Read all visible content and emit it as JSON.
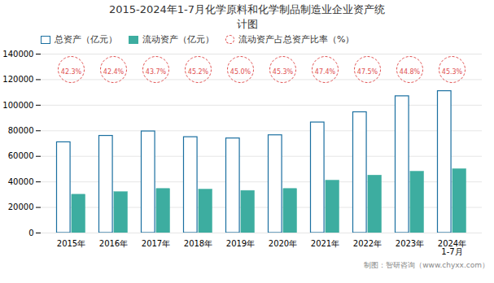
{
  "chart_data": {
    "type": "bar",
    "title": "2015-2024年1-7月化学原料和化学制品制造业企业资产统\n计图",
    "categories": [
      "2015年",
      "2016年",
      "2017年",
      "2018年",
      "2019年",
      "2020年",
      "2021年",
      "2022年",
      "2023年",
      "2024年\n1-7月"
    ],
    "series": [
      {
        "name": "总资产（亿元）",
        "color": "#1a6fa0",
        "values": [
          71000,
          76000,
          79500,
          75000,
          74000,
          76500,
          86500,
          94500,
          107000,
          111000
        ]
      },
      {
        "name": "流动资产（亿元）",
        "color": "#3dada0",
        "values": [
          30000,
          32000,
          34500,
          34000,
          33000,
          34500,
          41000,
          45000,
          48000,
          50000
        ]
      },
      {
        "name": "流动资产占总资产比率（%）",
        "type": "scatter",
        "marker": "circle",
        "line_style": "dashed",
        "color": "#e05050",
        "values": [
          42.3,
          42.4,
          43.7,
          45.2,
          45.0,
          45.3,
          47.4,
          47.5,
          44.8,
          45.3
        ],
        "value_labels": [
          "42.3%",
          "42.4%",
          "43.7%",
          "45.2%",
          "45.0%",
          "45.3%",
          "47.4%",
          "47.5%",
          "44.8%",
          "45.3%"
        ]
      }
    ],
    "ylim": [
      0,
      140000
    ],
    "yticks": [
      0,
      20000,
      40000,
      60000,
      80000,
      100000,
      120000,
      140000
    ],
    "grid": true,
    "legend": "upper left",
    "caption": "制图：智研咨询（www.chyxx.com）"
  }
}
